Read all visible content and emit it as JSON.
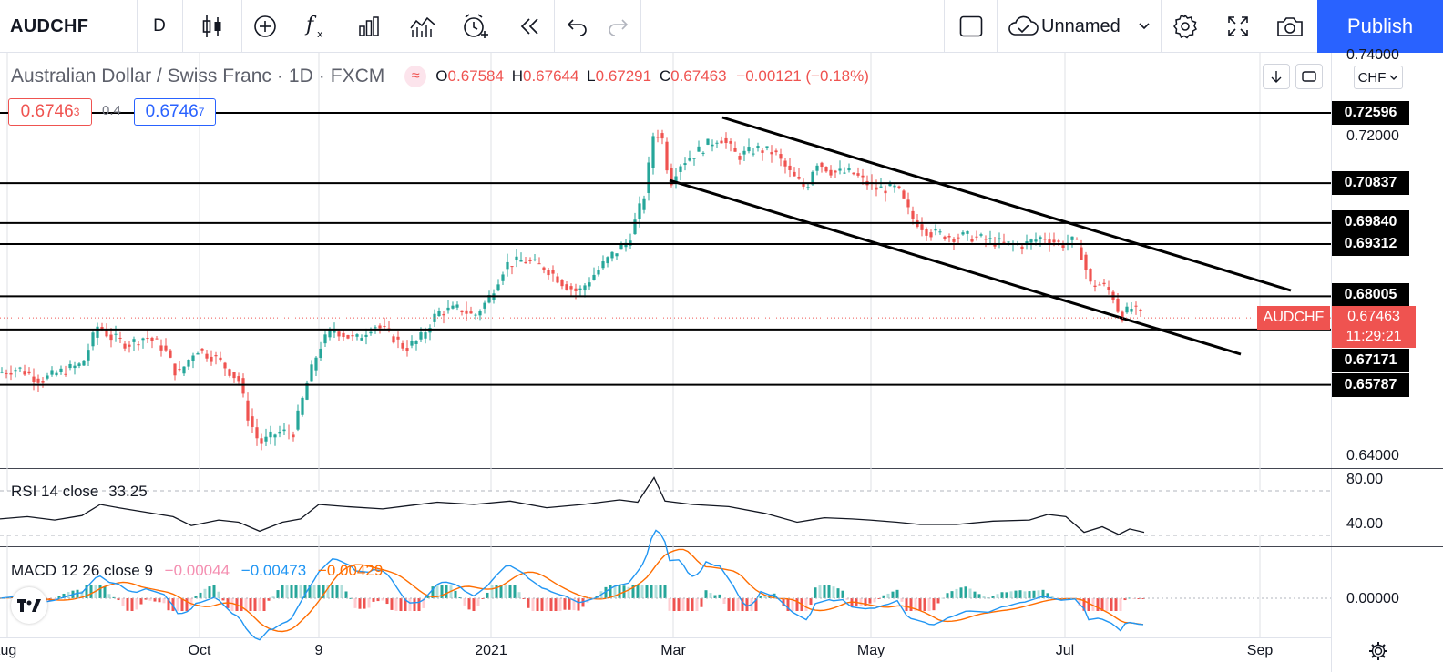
{
  "toolbar": {
    "symbol": "AUDCHF",
    "interval": "D",
    "layout_name": "Unnamed",
    "publish_label": "Publish",
    "icons": [
      "candles-icon",
      "add-compare-icon",
      "indicators-icon",
      "templates-icon",
      "financials-icon",
      "alert-icon",
      "replay-icon",
      "undo-icon",
      "redo-icon",
      "layout-icon",
      "cloud-icon",
      "chevron-down-icon",
      "settings-icon",
      "fullscreen-icon",
      "camera-icon"
    ]
  },
  "legend": {
    "title": "Australian Dollar / Swiss Franc",
    "interval": "1D",
    "exchange": "FXCM",
    "dot": "·",
    "open_label": "O",
    "open": "0.67584",
    "high_label": "H",
    "high": "0.67644",
    "low_label": "L",
    "low": "0.67291",
    "close_label": "C",
    "close": "0.67463",
    "change": "−0.00121 (−0.18%)"
  },
  "quote": {
    "sell_main": "0.6746",
    "sell_small": "3",
    "spread": "0.4",
    "buy_main": "0.6746",
    "buy_small": "7",
    "sell_color": "#ef5350",
    "buy_color": "#2962ff"
  },
  "price_axis": {
    "currency": "CHF",
    "labels": [
      "0.74000",
      "0.72000",
      "0.64000"
    ],
    "horizontal_levels": [
      "0.72596",
      "0.70837",
      "0.69840",
      "0.69312",
      "0.68005",
      "0.67171",
      "0.65787"
    ],
    "symbol_tag": "AUDCHF",
    "last_price": "0.67463",
    "countdown": "11:29:21",
    "tag_color": "#ef5350"
  },
  "rsi": {
    "label": "RSI 14 close",
    "value": "33.25",
    "axis_labels": [
      "80.00",
      "40.00"
    ]
  },
  "macd": {
    "label": "MACD 12 26 close 9",
    "hist": "−0.00044",
    "macd": "−0.00473",
    "signal": "−0.00429",
    "axis_label": "0.00000",
    "hist_color": "#f8bbd0",
    "macd_color": "#2196f3",
    "signal_color": "#ff6d00"
  },
  "time_axis": [
    "Aug",
    "Oct",
    "9",
    "2021",
    "Mar",
    "May",
    "Jul",
    "Sep"
  ],
  "chart_data": {
    "type": "candlestick",
    "title": "Australian Dollar / Swiss Franc",
    "ylim": [
      0.636,
      0.745
    ],
    "horizontal_levels": [
      0.72596,
      0.70837,
      0.6984,
      0.69312,
      0.68005,
      0.67171,
      0.65787
    ],
    "price_path": [
      [
        0,
        0.661
      ],
      [
        20,
        0.662
      ],
      [
        45,
        0.659
      ],
      [
        65,
        0.661
      ],
      [
        90,
        0.663
      ],
      [
        108,
        0.673
      ],
      [
        120,
        0.67
      ],
      [
        140,
        0.668
      ],
      [
        160,
        0.67
      ],
      [
        180,
        0.667
      ],
      [
        195,
        0.66
      ],
      [
        215,
        0.667
      ],
      [
        240,
        0.664
      ],
      [
        262,
        0.659
      ],
      [
        272,
        0.65
      ],
      [
        285,
        0.643
      ],
      [
        305,
        0.646
      ],
      [
        322,
        0.646
      ],
      [
        338,
        0.659
      ],
      [
        350,
        0.667
      ],
      [
        365,
        0.672
      ],
      [
        390,
        0.669
      ],
      [
        410,
        0.673
      ],
      [
        425,
        0.671
      ],
      [
        445,
        0.667
      ],
      [
        460,
        0.669
      ],
      [
        480,
        0.676
      ],
      [
        505,
        0.677
      ],
      [
        520,
        0.675
      ],
      [
        535,
        0.679
      ],
      [
        555,
        0.688
      ],
      [
        575,
        0.689
      ],
      [
        600,
        0.687
      ],
      [
        620,
        0.683
      ],
      [
        635,
        0.681
      ],
      [
        650,
        0.685
      ],
      [
        670,
        0.69
      ],
      [
        690,
        0.694
      ],
      [
        708,
        0.706
      ],
      [
        718,
        0.722
      ],
      [
        728,
        0.719
      ],
      [
        735,
        0.708
      ],
      [
        745,
        0.713
      ],
      [
        770,
        0.717
      ],
      [
        790,
        0.72
      ],
      [
        810,
        0.715
      ],
      [
        830,
        0.717
      ],
      [
        850,
        0.716
      ],
      [
        870,
        0.71
      ],
      [
        885,
        0.707
      ],
      [
        895,
        0.714
      ],
      [
        915,
        0.711
      ],
      [
        935,
        0.711
      ],
      [
        960,
        0.707
      ],
      [
        985,
        0.707
      ],
      [
        1000,
        0.7
      ],
      [
        1020,
        0.696
      ],
      [
        1045,
        0.695
      ],
      [
        1065,
        0.695
      ],
      [
        1085,
        0.694
      ],
      [
        1105,
        0.693
      ],
      [
        1125,
        0.693
      ],
      [
        1145,
        0.695
      ],
      [
        1165,
        0.693
      ],
      [
        1180,
        0.694
      ],
      [
        1190,
        0.689
      ],
      [
        1195,
        0.683
      ],
      [
        1208,
        0.683
      ],
      [
        1220,
        0.681
      ],
      [
        1230,
        0.675
      ],
      [
        1242,
        0.677
      ],
      [
        1256,
        0.6746
      ]
    ],
    "rsi_path": [
      [
        0,
        45
      ],
      [
        30,
        47
      ],
      [
        60,
        44
      ],
      [
        90,
        48
      ],
      [
        110,
        58
      ],
      [
        130,
        55
      ],
      [
        160,
        51
      ],
      [
        190,
        47
      ],
      [
        210,
        39
      ],
      [
        240,
        44
      ],
      [
        262,
        42
      ],
      [
        285,
        34
      ],
      [
        310,
        42
      ],
      [
        330,
        45
      ],
      [
        350,
        58
      ],
      [
        380,
        56
      ],
      [
        420,
        54
      ],
      [
        450,
        57
      ],
      [
        480,
        60
      ],
      [
        520,
        58
      ],
      [
        560,
        61
      ],
      [
        600,
        55
      ],
      [
        640,
        58
      ],
      [
        680,
        62
      ],
      [
        700,
        60
      ],
      [
        718,
        82
      ],
      [
        730,
        61
      ],
      [
        760,
        58
      ],
      [
        800,
        56
      ],
      [
        840,
        50
      ],
      [
        875,
        42
      ],
      [
        905,
        46
      ],
      [
        935,
        45
      ],
      [
        955,
        44
      ],
      [
        985,
        42
      ],
      [
        1010,
        40
      ],
      [
        1050,
        40
      ],
      [
        1090,
        43
      ],
      [
        1130,
        44
      ],
      [
        1150,
        49
      ],
      [
        1170,
        47
      ],
      [
        1190,
        33
      ],
      [
        1210,
        38
      ],
      [
        1228,
        31
      ],
      [
        1240,
        36
      ],
      [
        1256,
        33
      ]
    ]
  }
}
